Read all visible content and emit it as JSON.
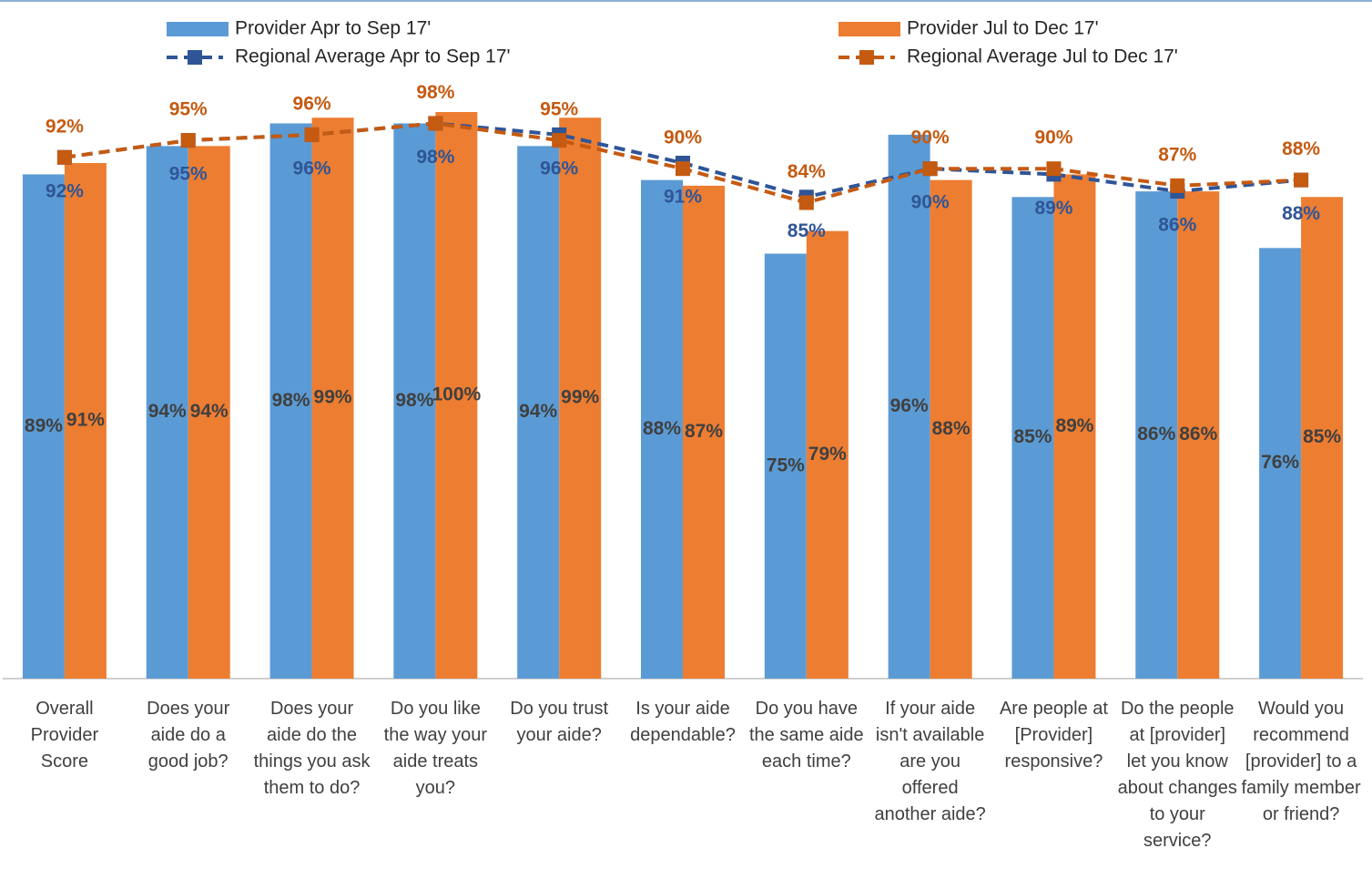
{
  "chart_data": {
    "type": "bar",
    "categories": [
      "Overall Provider Score",
      "Does your aide do a good job?",
      "Does your aide do the things you ask them to do?",
      "Do you like the way your aide treats you?",
      "Do you trust your aide?",
      "Is your aide dependable?",
      "Do you have the same aide each time?",
      "If your aide isn't available are you offered another aide?",
      "Are people at [Provider] responsive?",
      "Do the people at [provider] let you know about changes to your service?",
      "Would you recommend [provider] to a family member or friend?"
    ],
    "series": [
      {
        "name": "Provider Apr to Sep 17'",
        "type": "bar",
        "color": "#5b9bd5",
        "values": [
          89,
          94,
          98,
          98,
          94,
          88,
          75,
          96,
          85,
          86,
          76
        ],
        "value_labels": [
          "89%",
          "94%",
          "98%",
          "98%",
          "94%",
          "88%",
          "75%",
          "96%",
          "85%",
          "86%",
          "76%"
        ]
      },
      {
        "name": "Provider Jul to Dec 17'",
        "type": "bar",
        "color": "#ed7d31",
        "values": [
          91,
          94,
          99,
          100,
          99,
          87,
          79,
          88,
          89,
          86,
          85
        ],
        "value_labels": [
          "91%",
          "94%",
          "99%",
          "100%",
          "99%",
          "87%",
          "79%",
          "88%",
          "89%",
          "86%",
          "85%"
        ]
      },
      {
        "name": "Regional Average Apr to Sep 17'",
        "type": "line",
        "color": "#2f5597",
        "values": [
          92,
          95,
          96,
          98,
          96,
          91,
          85,
          90,
          89,
          86,
          88
        ],
        "value_labels": [
          "92%",
          "95%",
          "96%",
          "98%",
          "96%",
          "91%",
          "85%",
          "90%",
          "89%",
          "86%",
          "88%"
        ]
      },
      {
        "name": "Regional Average Jul to Dec 17'",
        "type": "line",
        "color": "#c55a11",
        "values": [
          92,
          95,
          96,
          98,
          95,
          90,
          84,
          90,
          90,
          87,
          88
        ],
        "value_labels": [
          "92%",
          "95%",
          "96%",
          "98%",
          "95%",
          "90%",
          "84%",
          "90%",
          "90%",
          "87%",
          "88%"
        ]
      }
    ],
    "ylim": [
      0,
      100
    ],
    "legend": "top"
  }
}
